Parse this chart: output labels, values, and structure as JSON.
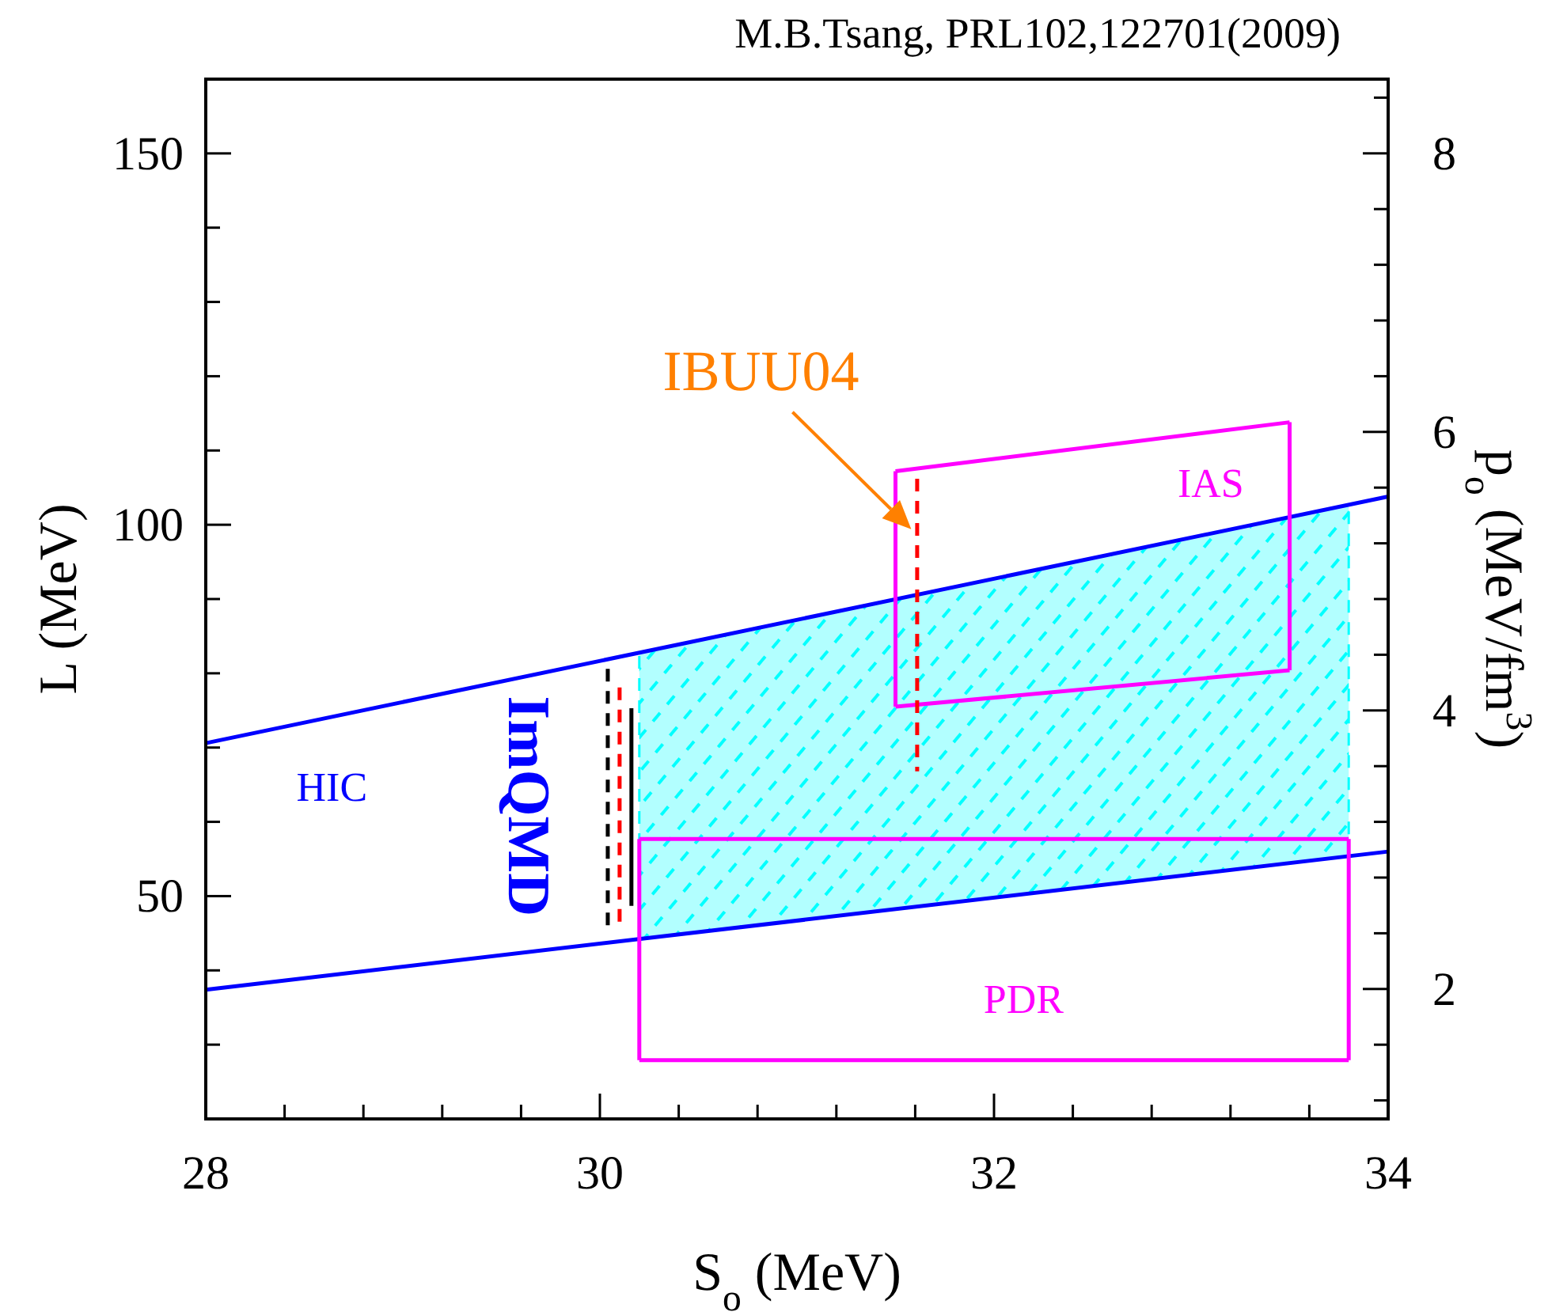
{
  "chart_data": {
    "type": "line",
    "title": "M.B.Tsang, PRL102,122701(2009)",
    "xlabel": "S$_{o}$ (MeV)",
    "ylabel": "L (MeV)",
    "y2label": "p$_{o}$ (MeV/fm$^{3}$)",
    "xlim": [
      28,
      34
    ],
    "xticks": [
      28,
      {
        "value": 28.4,
        "label": null
      },
      {
        "value": 28.8,
        "label": null
      },
      {
        "value": 29.2,
        "label": null
      },
      {
        "value": 29.6,
        "label": null
      },
      30,
      {
        "value": 30.4,
        "label": null
      },
      {
        "value": 30.8,
        "label": null
      },
      {
        "value": 31.2,
        "label": null
      },
      {
        "value": 31.6,
        "label": null
      },
      32,
      {
        "value": 32.4,
        "label": null
      },
      {
        "value": 32.8,
        "label": null
      },
      {
        "value": 33.2,
        "label": null
      },
      {
        "value": 33.6,
        "label": null
      },
      34
    ],
    "ylim": [
      20,
      160
    ],
    "yticks": [
      {
        "value": 30,
        "label": null
      },
      {
        "value": 40,
        "label": null
      },
      50,
      {
        "value": 60,
        "label": null
      },
      {
        "value": 70,
        "label": null
      },
      {
        "value": 80,
        "label": null
      },
      {
        "value": 90,
        "label": null
      },
      100,
      {
        "value": 110,
        "label": null
      },
      {
        "value": 120,
        "label": null
      },
      {
        "value": 130,
        "label": null
      },
      {
        "value": 140,
        "label": null
      },
      150
    ],
    "y2lim": [
      1.067,
      8.533
    ],
    "y2ticks": [
      {
        "value": 1.2,
        "label": null
      },
      {
        "value": 1.6,
        "label": null
      },
      2,
      {
        "value": 2.4,
        "label": null
      },
      {
        "value": 2.8,
        "label": null
      },
      {
        "value": 3.2,
        "label": null
      },
      {
        "value": 3.6,
        "label": null
      },
      4,
      {
        "value": 4.4,
        "label": null
      },
      {
        "value": 4.8,
        "label": null
      },
      {
        "value": 5.2,
        "label": null
      },
      {
        "value": 5.6,
        "label": null
      },
      6,
      {
        "value": 6.4,
        "label": null
      },
      {
        "value": 6.8,
        "label": null
      },
      {
        "value": 7.2,
        "label": null
      },
      {
        "value": 7.6,
        "label": null
      },
      8,
      {
        "value": 8.4,
        "label": null
      }
    ],
    "grid": false,
    "series": [
      {
        "color": "#00ffff",
        "line_style": "dashed",
        "x": [
          30.2,
          33.8
        ],
        "values": [
          null,
          null
        ],
        "lower": [
          44.2,
          55.4
        ],
        "upper": [
          82.8,
          102.7
        ]
      },
      {
        "color": "#0000ff",
        "x": [
          28,
          34
        ],
        "values": [
          70.6,
          103.8
        ],
        "line_style": "solid"
      },
      {
        "color": "#0000ff",
        "x": [
          28,
          34
        ],
        "values": [
          37.4,
          56.0
        ],
        "line_style": "solid"
      },
      {
        "color": "#ff00ff",
        "x": [
          31.5,
          33.5
        ],
        "values": [
          107.2,
          113.8
        ],
        "line_style": "solid"
      },
      {
        "color": "#ff00ff",
        "x": [
          31.5,
          33.5
        ],
        "values": [
          75.5,
          80.4
        ],
        "line_style": "solid"
      },
      {
        "color": "#ff00ff",
        "x": [
          31.5,
          31.5
        ],
        "values": [
          75.5,
          107.2
        ],
        "line_style": "solid"
      },
      {
        "color": "#ff00ff",
        "x": [
          33.5,
          33.5
        ],
        "values": [
          80.4,
          113.8
        ],
        "line_style": "solid"
      },
      {
        "color": "#ff00ff",
        "x": [
          30.2,
          33.8
        ],
        "values": [
          57.7,
          57.7
        ],
        "line_style": "solid"
      },
      {
        "color": "#ff00ff",
        "x": [
          30.2,
          33.8
        ],
        "values": [
          27.9,
          27.9
        ],
        "line_style": "solid"
      },
      {
        "color": "#ff00ff",
        "x": [
          30.2,
          30.2
        ],
        "values": [
          27.9,
          57.7
        ],
        "line_style": "solid"
      },
      {
        "color": "#ff00ff",
        "x": [
          33.8,
          33.8
        ],
        "values": [
          27.9,
          57.7
        ],
        "line_style": "solid"
      },
      {
        "color": "#000000",
        "x": [
          30.04,
          30.04
        ],
        "values": [
          80.6,
          45.7
        ],
        "line_style": "dashed"
      },
      {
        "color": "#ff0000",
        "x": [
          30.1,
          30.1
        ],
        "values": [
          78.1,
          46.2
        ],
        "line_style": "dashed"
      },
      {
        "color": "#000000",
        "x": [
          30.16,
          30.16
        ],
        "values": [
          75.3,
          48.7
        ],
        "line_style": "solid"
      },
      {
        "color": "#ff0000",
        "x": [
          31.61,
          31.61
        ],
        "values": [
          106.2,
          66.8
        ],
        "line_style": "dashed"
      }
    ],
    "annotations": [
      "HIC",
      "IAS",
      "PDR",
      "ImQMD",
      {
        "text": "IBUU04",
        "x": 31.58,
        "y": 99.4
      }
    ]
  }
}
